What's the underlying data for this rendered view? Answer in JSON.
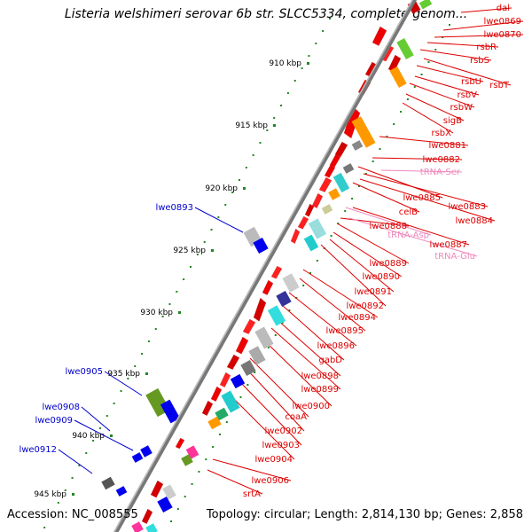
{
  "title": "Listeria welshimeri serovar 6b str. SLCC5334, complete genom...",
  "footer": {
    "accession": "Accession: NC_008555",
    "topology": "Topology: circular; Length: 2,814,130 bp; Genes: 2,858"
  },
  "colors": {
    "forward_label": "#0000cc",
    "reverse_label": "#dd0000",
    "rna_label": "#ee88bb",
    "backbone": "#888888",
    "tick": "#228822"
  },
  "scale_labels": [
    "910 kbp",
    "915 kbp",
    "920 kbp",
    "925 kbp",
    "930 kbp",
    "935 kbp",
    "940 kbp",
    "945 kbp"
  ],
  "forward_labels": [
    "lwe0893",
    "lwe0905",
    "lwe0908",
    "lwe0909",
    "lwe0912"
  ],
  "reverse_labels": [
    "dal",
    "lwe0869",
    "lwe0870",
    "rsbR",
    "rsbS",
    "rsbT",
    "rsbU",
    "rsbV",
    "rsbW",
    "sigB",
    "rsbX",
    "lwe0881",
    "lwe0882",
    "lwe0883",
    "lwe0884",
    "lwe0885",
    "celB",
    "lwe0887",
    "lwe0888",
    "lwe0889",
    "lwe0890",
    "lwe0891",
    "lwe0892",
    "lwe0894",
    "lwe0895",
    "lwe0896",
    "gabD",
    "lwe0898",
    "lwe0899",
    "lwe0900",
    "coaA",
    "lwe0902",
    "lwe0903",
    "lwe0904",
    "lwe0906",
    "srtA"
  ],
  "rna_labels": [
    "tRNA-Ser",
    "tRNA-Asp",
    "tRNA-Glu"
  ]
}
